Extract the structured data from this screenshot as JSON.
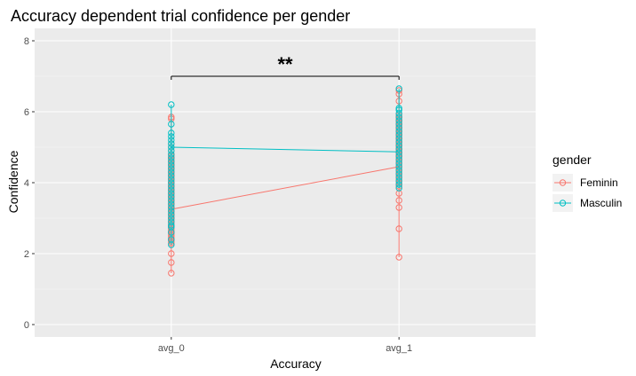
{
  "chart_data": {
    "type": "scatter",
    "title": "Accuracy dependent trial confidence per gender",
    "xlabel": "Accuracy",
    "ylabel": "Confidence",
    "categories": [
      "avg_0",
      "avg_1"
    ],
    "ylim": [
      -0.35,
      8.35
    ],
    "yticks": [
      0,
      2,
      4,
      6,
      8
    ],
    "grid": true,
    "legend": {
      "title": "gender",
      "position": "right"
    },
    "annotation": {
      "text": "**",
      "from": "avg_0",
      "to": "avg_1",
      "y": 7.0
    },
    "series": [
      {
        "name": "Feminin",
        "color": "#F8766D",
        "means": [
          3.25,
          4.45
        ],
        "points": [
          [
            1.45,
            1.75,
            2.0,
            2.3,
            2.35,
            2.4,
            2.45,
            2.5,
            2.55,
            2.6,
            2.65,
            2.7,
            2.75,
            2.8,
            2.85,
            2.9,
            2.95,
            3.0,
            3.05,
            3.1,
            3.15,
            3.2,
            3.25,
            3.3,
            3.35,
            3.4,
            3.45,
            3.5,
            3.55,
            3.6,
            3.65,
            3.7,
            3.75,
            3.8,
            3.85,
            3.9,
            3.95,
            4.0,
            4.05,
            4.1,
            4.15,
            4.2,
            4.25,
            4.3,
            4.35,
            4.4,
            4.45,
            4.5,
            4.55,
            4.6,
            4.65,
            4.7,
            4.75,
            4.8,
            4.9,
            5.0,
            5.1,
            5.8,
            5.85
          ],
          [
            1.9,
            2.7,
            3.3,
            3.5,
            3.7,
            3.9,
            4.0,
            4.1,
            4.2,
            4.3,
            4.4,
            4.5,
            4.6,
            4.7,
            4.75,
            4.8,
            4.85,
            4.9,
            4.95,
            5.0,
            5.05,
            5.1,
            5.15,
            5.2,
            5.25,
            5.3,
            5.35,
            5.4,
            5.45,
            5.5,
            5.55,
            5.6,
            5.65,
            5.7,
            5.75,
            5.8,
            5.85,
            5.9,
            6.3,
            6.5,
            6.6
          ]
        ]
      },
      {
        "name": "Masculin",
        "color": "#00BFC4",
        "means": [
          5.0,
          4.87
        ],
        "points": [
          [
            2.25,
            2.4,
            2.6,
            2.75,
            2.8,
            2.9,
            3.0,
            3.1,
            3.2,
            3.3,
            3.4,
            3.5,
            3.6,
            3.7,
            3.8,
            3.9,
            4.0,
            4.1,
            4.2,
            4.3,
            4.4,
            4.5,
            4.6,
            4.7,
            4.8,
            4.9,
            5.0,
            5.1,
            5.2,
            5.3,
            5.4,
            5.65,
            6.2
          ],
          [
            3.85,
            3.95,
            4.05,
            4.15,
            4.25,
            4.35,
            4.45,
            4.55,
            4.65,
            4.75,
            4.85,
            4.95,
            5.05,
            5.15,
            5.25,
            5.35,
            5.45,
            5.55,
            5.65,
            5.75,
            5.85,
            5.95,
            6.05,
            6.1,
            6.65
          ]
        ]
      }
    ]
  }
}
